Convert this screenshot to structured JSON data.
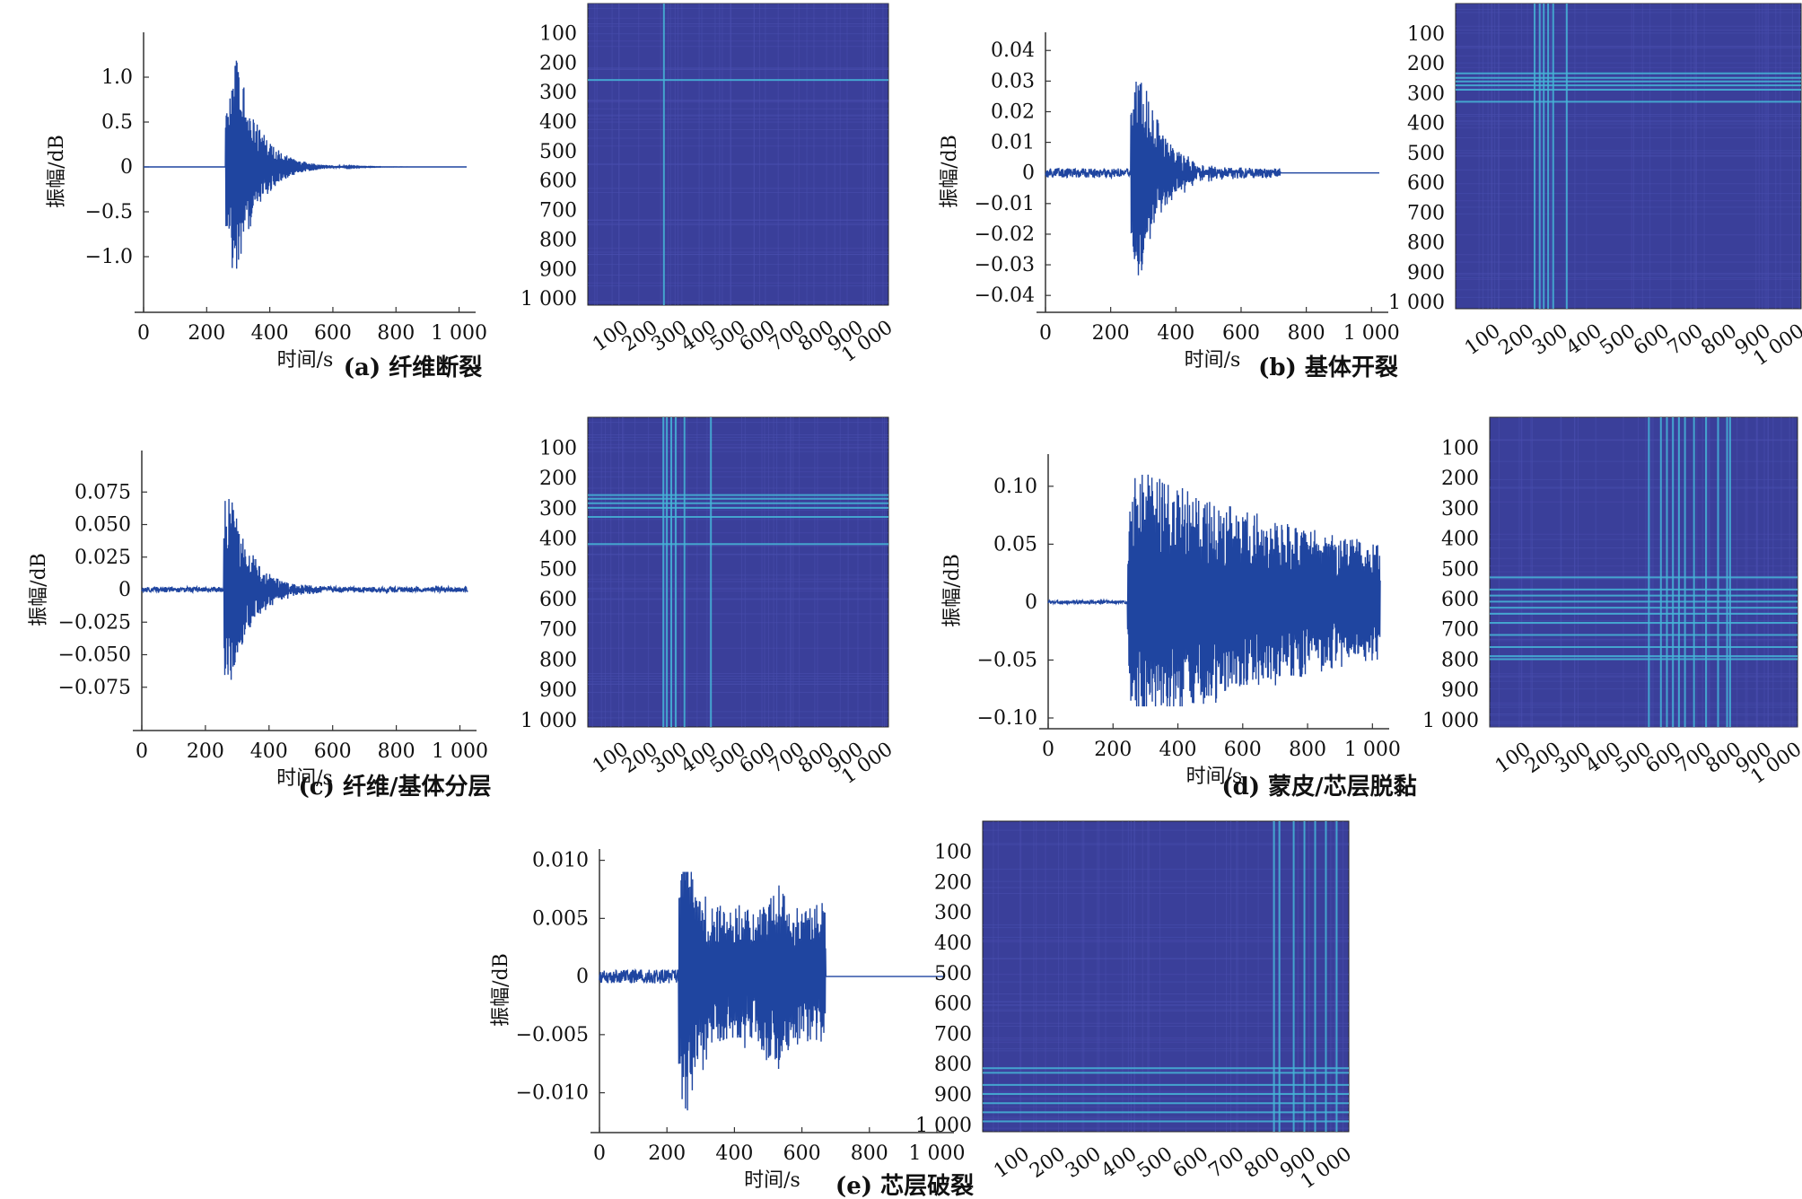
{
  "chart_data": [
    {
      "id": "a",
      "caption": "(a) 纤维断裂",
      "waveform": {
        "type": "line",
        "xlabel": "时间/s",
        "ylabel": "振幅/dB",
        "xlim": [
          0,
          1024
        ],
        "ylim": [
          -1.5,
          1.4
        ],
        "xticks": [
          0,
          200,
          400,
          600,
          800,
          1000
        ],
        "xtick_labels": [
          "0",
          "200",
          "400",
          "600",
          "800",
          "1 000"
        ],
        "yticks": [
          1.0,
          0.5,
          0,
          -0.5,
          -1.0
        ],
        "ytick_labels": [
          "1.0",
          "0.5",
          "0",
          "−0.5",
          "−1.0"
        ],
        "burst_start": 260,
        "peak_x": 290,
        "y_max": 1.25,
        "y_min": -1.35,
        "signal_end": 1024,
        "noise_level": 0.0
      },
      "matrix": {
        "type": "heatmap",
        "ytick_labels": [
          "100",
          "200",
          "300",
          "400",
          "500",
          "600",
          "700",
          "800",
          "900",
          "1 000"
        ],
        "xtick_labels": [
          "100",
          "200",
          "300",
          "400",
          "500",
          "600",
          "700",
          "800",
          "900",
          "1 000"
        ],
        "range": [
          1,
          1024
        ],
        "highlight_lines": [
          260
        ]
      }
    },
    {
      "id": "b",
      "caption": "(b) 基体开裂",
      "waveform": {
        "type": "line",
        "xlabel": "时间/s",
        "ylabel": "振幅/dB",
        "xlim": [
          0,
          1024
        ],
        "ylim": [
          -0.042,
          0.043
        ],
        "xticks": [
          0,
          200,
          400,
          600,
          800,
          1000
        ],
        "xtick_labels": [
          "0",
          "200",
          "400",
          "600",
          "800",
          "1 000"
        ],
        "yticks": [
          0.04,
          0.03,
          0.02,
          0.01,
          0,
          -0.01,
          -0.02,
          -0.03,
          -0.04
        ],
        "ytick_labels": [
          "0.04",
          "0.03",
          "0.02",
          "0.01",
          "0",
          "−0.01",
          "−0.02",
          "−0.03",
          "−0.04"
        ],
        "burst_start": 262,
        "peak_x": 285,
        "y_max": 0.038,
        "y_min": -0.038,
        "signal_end": 720,
        "noise_level": 0.0015
      },
      "matrix": {
        "type": "heatmap",
        "ytick_labels": [
          "100",
          "200",
          "300",
          "400",
          "500",
          "600",
          "700",
          "800",
          "900",
          "1 000"
        ],
        "xtick_labels": [
          "100",
          "200",
          "300",
          "400",
          "500",
          "600",
          "700",
          "800",
          "900",
          "1 000"
        ],
        "range": [
          1,
          1024
        ],
        "highlight_lines": [
          235,
          250,
          262,
          275,
          290,
          330
        ]
      }
    },
    {
      "id": "c",
      "caption": "(c) 纤维/基体分层",
      "waveform": {
        "type": "line",
        "xlabel": "时间/s",
        "ylabel": "振幅/dB",
        "xlim": [
          0,
          1024
        ],
        "ylim": [
          -0.1,
          0.1
        ],
        "xticks": [
          0,
          200,
          400,
          600,
          800,
          1000
        ],
        "xtick_labels": [
          "0",
          "200",
          "400",
          "600",
          "800",
          "1 000"
        ],
        "yticks": [
          0.075,
          0.05,
          0.025,
          0,
          -0.025,
          -0.05,
          -0.075
        ],
        "ytick_labels": [
          "0.075",
          "0.050",
          "0.025",
          "0",
          "−0.025",
          "−0.050",
          "−0.075"
        ],
        "burst_start": 258,
        "peak_x": 265,
        "y_max": 0.09,
        "y_min": -0.09,
        "signal_end": 1024,
        "noise_level": 0.002
      },
      "matrix": {
        "type": "heatmap",
        "ytick_labels": [
          "100",
          "200",
          "300",
          "400",
          "500",
          "600",
          "700",
          "800",
          "900",
          "1 000"
        ],
        "xtick_labels": [
          "100",
          "200",
          "300",
          "400",
          "500",
          "600",
          "700",
          "800",
          "900",
          "1 000"
        ],
        "range": [
          1,
          1024
        ],
        "highlight_lines": [
          258,
          270,
          285,
          300,
          330,
          420
        ]
      }
    },
    {
      "id": "d",
      "caption": "(d) 蒙皮/芯层脱黏",
      "waveform": {
        "type": "line",
        "xlabel": "时间/s",
        "ylabel": "振幅/dB",
        "xlim": [
          0,
          1024
        ],
        "ylim": [
          -0.1,
          0.12
        ],
        "xticks": [
          0,
          200,
          400,
          600,
          800,
          1000
        ],
        "xtick_labels": [
          "0",
          "200",
          "400",
          "600",
          "800",
          "1 000"
        ],
        "yticks": [
          0.1,
          0.05,
          0,
          -0.05,
          -0.1
        ],
        "ytick_labels": [
          "0.10",
          "0.05",
          "0",
          "−0.05",
          "−0.10"
        ],
        "burst_start": 245,
        "peak_x": 270,
        "y_max": 0.115,
        "y_min": -0.09,
        "signal_end": 1024,
        "noise_level": 0.0015
      },
      "matrix": {
        "type": "heatmap",
        "ytick_labels": [
          "100",
          "200",
          "300",
          "400",
          "500",
          "600",
          "700",
          "800",
          "900",
          "1 000"
        ],
        "xtick_labels": [
          "100",
          "200",
          "300",
          "400",
          "500",
          "600",
          "700",
          "800",
          "900",
          "1 000"
        ],
        "range": [
          1,
          1024
        ],
        "highlight_lines": [
          530,
          570,
          590,
          610,
          630,
          650,
          680,
          720,
          760,
          790,
          800
        ]
      }
    },
    {
      "id": "e",
      "caption": "(e) 芯层破裂",
      "waveform": {
        "type": "line",
        "xlabel": "时间/s",
        "ylabel": "振幅/dB",
        "xlim": [
          0,
          1024
        ],
        "ylim": [
          -0.0125,
          0.0102
        ],
        "xticks": [
          0,
          200,
          400,
          600,
          800,
          1000
        ],
        "xtick_labels": [
          "0",
          "200",
          "400",
          "600",
          "800",
          "1 000"
        ],
        "yticks": [
          0.01,
          0.005,
          0,
          -0.005,
          -0.01
        ],
        "ytick_labels": [
          "0.010",
          "0.005",
          "0",
          "−0.005",
          "−0.010"
        ],
        "burst_start": 235,
        "peak_x": 255,
        "y_max": 0.009,
        "y_min": -0.013,
        "signal_end": 670,
        "noise_level": 0.0006
      },
      "matrix": {
        "type": "heatmap",
        "ytick_labels": [
          "100",
          "200",
          "300",
          "400",
          "500",
          "600",
          "700",
          "800",
          "900",
          "1 000"
        ],
        "xtick_labels": [
          "100",
          "200",
          "300",
          "400",
          "500",
          "600",
          "700",
          "800",
          "900",
          "1 000"
        ],
        "range": [
          1,
          1024
        ],
        "highlight_lines": [
          815,
          830,
          870,
          900,
          930,
          960,
          990
        ]
      }
    }
  ],
  "colors": {
    "signal": "#1f45a0",
    "matrix_bg": "#3a3f9a",
    "matrix_line": "#46b6d8",
    "axis": "#333333"
  }
}
